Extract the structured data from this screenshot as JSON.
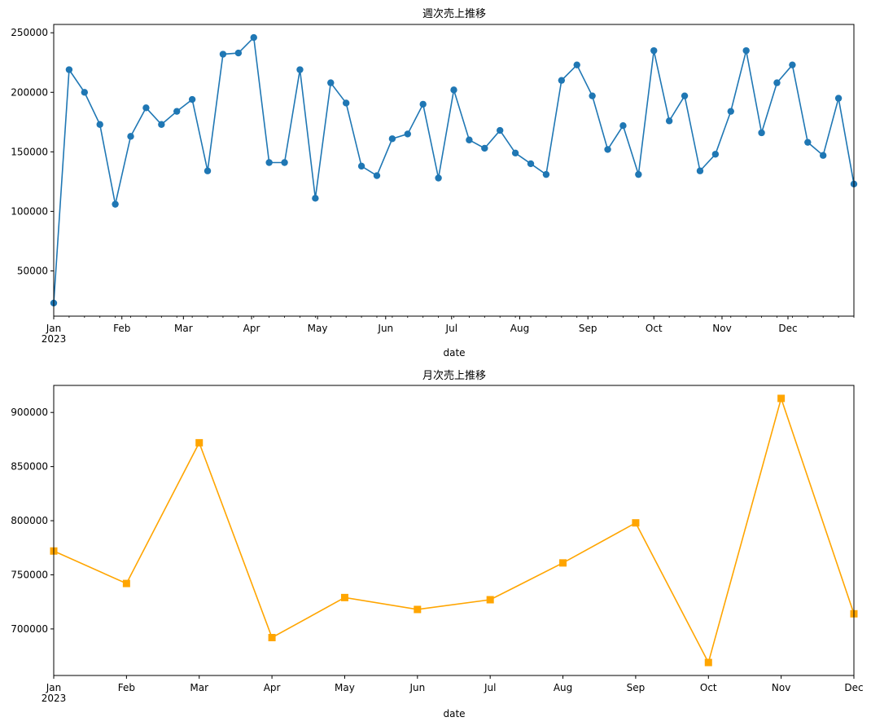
{
  "chart_data": [
    {
      "type": "line",
      "title": "週次売上推移",
      "xlabel": "date",
      "ylabel": "",
      "x_tick_labels": [
        "Jan\n2023",
        "Feb",
        "Mar",
        "Apr",
        "May",
        "Jun",
        "Jul",
        "Aug",
        "Sep",
        "Oct",
        "Nov",
        "Dec"
      ],
      "y_ticks": [
        50000,
        100000,
        150000,
        200000,
        250000
      ],
      "ylim": [
        12000,
        257000
      ],
      "xlim": [
        "2023-01-01",
        "2023-12-31"
      ],
      "grid": false,
      "marker": "circle",
      "color": "#1f77b4",
      "series": [
        {
          "x": [
            "2023-01-01",
            "2023-01-08",
            "2023-01-15",
            "2023-01-22",
            "2023-01-29",
            "2023-02-05",
            "2023-02-12",
            "2023-02-19",
            "2023-02-26",
            "2023-03-05",
            "2023-03-12",
            "2023-03-19",
            "2023-03-26",
            "2023-04-02",
            "2023-04-09",
            "2023-04-16",
            "2023-04-23",
            "2023-04-30",
            "2023-05-07",
            "2023-05-14",
            "2023-05-21",
            "2023-05-28",
            "2023-06-04",
            "2023-06-11",
            "2023-06-18",
            "2023-06-25",
            "2023-07-02",
            "2023-07-09",
            "2023-07-16",
            "2023-07-23",
            "2023-07-30",
            "2023-08-06",
            "2023-08-13",
            "2023-08-20",
            "2023-08-27",
            "2023-09-03",
            "2023-09-10",
            "2023-09-17",
            "2023-09-24",
            "2023-10-01",
            "2023-10-08",
            "2023-10-15",
            "2023-10-22",
            "2023-10-29",
            "2023-11-05",
            "2023-11-12",
            "2023-11-19",
            "2023-11-26",
            "2023-12-03",
            "2023-12-10",
            "2023-12-17",
            "2023-12-24",
            "2023-12-31"
          ],
          "values": [
            23000,
            219000,
            200000,
            173000,
            106000,
            163000,
            187000,
            173000,
            184000,
            194000,
            134000,
            232000,
            233000,
            246000,
            141000,
            141000,
            219000,
            111000,
            208000,
            191000,
            138000,
            130000,
            161000,
            165000,
            190000,
            128000,
            202000,
            160000,
            153000,
            168000,
            149000,
            140000,
            131000,
            210000,
            223000,
            197000,
            152000,
            172000,
            131000,
            235000,
            176000,
            197000,
            134000,
            148000,
            184000,
            235000,
            166000,
            208000,
            223000,
            158000,
            147000,
            195000,
            123000
          ]
        }
      ]
    },
    {
      "type": "line",
      "title": "月次売上推移",
      "xlabel": "date",
      "ylabel": "",
      "x_tick_labels": [
        "Jan\n2023",
        "Feb",
        "Mar",
        "Apr",
        "May",
        "Jun",
        "Jul",
        "Aug",
        "Sep",
        "Oct",
        "Nov",
        "Dec"
      ],
      "y_ticks": [
        700000,
        750000,
        800000,
        850000,
        900000
      ],
      "ylim": [
        657000,
        925000
      ],
      "grid": false,
      "marker": "square",
      "color": "#ffa500",
      "series": [
        {
          "x": [
            "2023-01",
            "2023-02",
            "2023-03",
            "2023-04",
            "2023-05",
            "2023-06",
            "2023-07",
            "2023-08",
            "2023-09",
            "2023-10",
            "2023-11",
            "2023-12"
          ],
          "values": [
            772000,
            742000,
            872000,
            692000,
            729000,
            718000,
            727000,
            761000,
            798000,
            669000,
            913000,
            714000
          ]
        }
      ]
    }
  ]
}
